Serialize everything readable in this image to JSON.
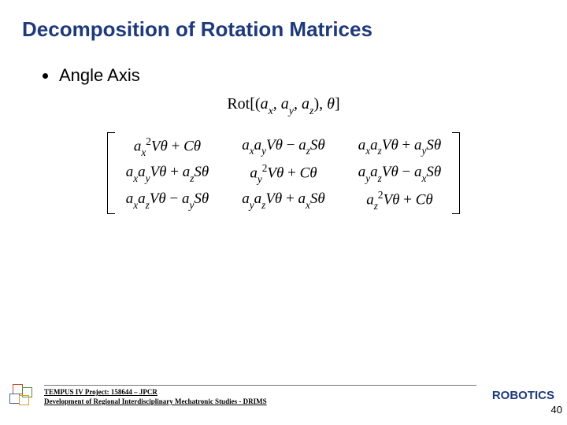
{
  "title": "Decomposition of Rotation Matrices",
  "bullet": "Angle Axis",
  "formula_html": "<span class='rm'>Rot</span>[(<span class='it'>a<sub>x</sub></span>, <span class='it'>a<sub>y</sub></span>, <span class='it'>a<sub>z</sub></span>), <span class='it'>θ</span>]",
  "matrix": [
    [
      "a<sub>x</sub><sup>2</sup>Vθ <span class='rm'>+</span> Cθ",
      "a<sub>x</sub>a<sub>y</sub>Vθ <span class='rm'>−</span> a<sub>z</sub>Sθ",
      "a<sub>x</sub>a<sub>z</sub>Vθ <span class='rm'>+</span> a<sub>y</sub>Sθ"
    ],
    [
      "a<sub>x</sub>a<sub>y</sub>Vθ <span class='rm'>+</span> a<sub>z</sub>Sθ",
      "a<sub>y</sub><sup>2</sup>Vθ <span class='rm'>+</span> Cθ",
      "a<sub>y</sub>a<sub>z</sub>Vθ <span class='rm'>−</span> a<sub>x</sub>Sθ"
    ],
    [
      "a<sub>x</sub>a<sub>z</sub>Vθ <span class='rm'>−</span> a<sub>y</sub>Sθ",
      "a<sub>y</sub>a<sub>z</sub>Vθ <span class='rm'>+</span> a<sub>x</sub>Sθ",
      "a<sub>z</sub><sup>2</sup>Vθ <span class='rm'>+</span> Cθ"
    ]
  ],
  "footer": {
    "line1": "TEMPUS IV Project: 158644 – JPCR",
    "line2": "Development of Regional Interdisciplinary Mechatronic Studies - DRIMS",
    "right": "ROBOTICS"
  },
  "logo_colors": {
    "a": "#c44e2a",
    "b": "#5a8a3a",
    "c": "#4a6aa0",
    "d": "#d4a030"
  },
  "page_number": "40",
  "colors": {
    "title": "#1f3a7a",
    "text": "#000000",
    "bg": "#ffffff"
  }
}
